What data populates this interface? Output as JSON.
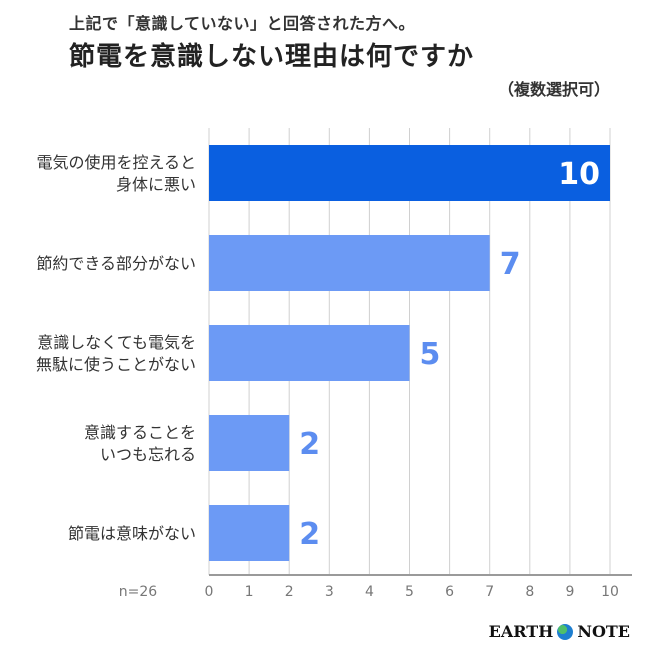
{
  "header": {
    "subtitle": "上記で「意識していない」と回答された方へ。",
    "title": "節電を意識しない理由は何ですか",
    "note": "（複数選択可）"
  },
  "brand": {
    "left": "EARTH",
    "right": "NOTE",
    "icon": "globe-icon"
  },
  "colors": {
    "highlight": "#0a5fe0",
    "bar": "#6c9af5",
    "value_text": "#5c8df0",
    "highlight_text": "#ffffff",
    "grid": "#d0d0d0"
  },
  "chart_data": {
    "type": "bar",
    "orientation": "horizontal",
    "categories": [
      [
        "電気の使用を控えると",
        "身体に悪い"
      ],
      [
        "節約できる部分がない"
      ],
      [
        "意識しなくても電気を",
        "無駄に使うことがない"
      ],
      [
        "意識することを",
        "いつも忘れる"
      ],
      [
        "節電は意味がない"
      ]
    ],
    "values": [
      10,
      7,
      5,
      2,
      2
    ],
    "value_labels": [
      "10",
      "7",
      "5",
      "2",
      "2"
    ],
    "highlight_index": 0,
    "xlim": [
      0,
      10
    ],
    "xticks": [
      "0",
      "1",
      "2",
      "3",
      "4",
      "5",
      "6",
      "7",
      "8",
      "9",
      "10"
    ],
    "n_label": "n=26",
    "grid": true
  }
}
